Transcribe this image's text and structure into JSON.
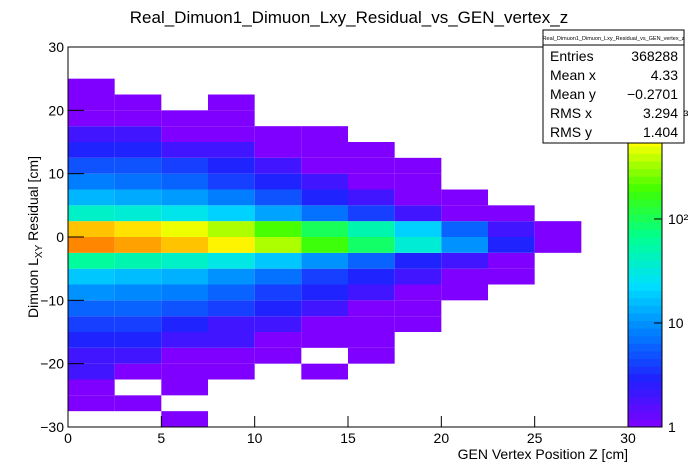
{
  "chart_data": {
    "type": "heatmap",
    "title": "Real_Dimuon1_Dimuon_Lxy_Residual_vs_GEN_vertex_z",
    "xlabel": "GEN Vertex Position Z [cm]",
    "ylabel_parts": [
      "Dimuon L",
      "XY",
      " Residual [cm]"
    ],
    "xlim": [
      0,
      30
    ],
    "xticks": [
      0,
      5,
      10,
      15,
      20,
      25,
      30
    ],
    "ylim": [
      -30,
      30
    ],
    "yticks": [
      {
        "value": -30,
        "label": "−30"
      },
      {
        "value": -20,
        "label": "−20"
      },
      {
        "value": -10,
        "label": "−10"
      },
      0,
      10,
      20,
      30
    ],
    "zlim": [
      1,
      4500
    ],
    "zlog": true,
    "zticks": [
      1,
      10,
      {
        "value": 100,
        "label": "10²"
      },
      {
        "value": 1000,
        "label": "10³"
      }
    ],
    "palette": [
      "#8000ff",
      "#2020ff",
      "#0080ff",
      "#00e0ff",
      "#00ff90",
      "#40ff00",
      "#ffff00",
      "#ff8000",
      "#ff0000"
    ],
    "xbins": [
      0,
      2.5,
      5,
      7.5,
      10,
      12.5,
      15,
      17.5,
      20,
      22.5,
      25,
      27.5,
      30
    ],
    "ybins": [
      -30,
      -27.5,
      -25,
      -22.5,
      -20,
      -17.5,
      -15,
      -12.5,
      -10,
      -7.5,
      -5,
      -2.5,
      0,
      2.5,
      5,
      7.5,
      10,
      12.5,
      15,
      17.5,
      20,
      22.5,
      25,
      27.5,
      30
    ],
    "z": [
      [
        0,
        0,
        1,
        0,
        0,
        0,
        0,
        0,
        0,
        0,
        0,
        0
      ],
      [
        1,
        1,
        0,
        0,
        0,
        0,
        0,
        0,
        0,
        0,
        0,
        0
      ],
      [
        1,
        0,
        1,
        0,
        0,
        0,
        0,
        0,
        0,
        0,
        0,
        0
      ],
      [
        2,
        1,
        1,
        1,
        0,
        1,
        0,
        0,
        0,
        0,
        0,
        0
      ],
      [
        2,
        2,
        1,
        1,
        1,
        0,
        1,
        0,
        0,
        0,
        0,
        0
      ],
      [
        3,
        3,
        2,
        2,
        1,
        1,
        1,
        0,
        0,
        0,
        0,
        0
      ],
      [
        4,
        4,
        3,
        2,
        2,
        1,
        1,
        1,
        0,
        0,
        0,
        0
      ],
      [
        6,
        6,
        5,
        4,
        3,
        2,
        1,
        1,
        0,
        0,
        0,
        0
      ],
      [
        10,
        9,
        8,
        6,
        4,
        3,
        2,
        1,
        1,
        0,
        0,
        0
      ],
      [
        18,
        16,
        14,
        10,
        7,
        4,
        3,
        2,
        1,
        1,
        0,
        0
      ],
      [
        60,
        50,
        40,
        30,
        18,
        10,
        6,
        3,
        2,
        1,
        0,
        0
      ],
      [
        1500,
        1200,
        900,
        600,
        350,
        180,
        90,
        35,
        10,
        3,
        1,
        0
      ],
      [
        900,
        700,
        500,
        350,
        200,
        100,
        50,
        20,
        6,
        2,
        1,
        0
      ],
      [
        40,
        35,
        28,
        20,
        12,
        7,
        4,
        2,
        1,
        1,
        0,
        0
      ],
      [
        15,
        13,
        11,
        8,
        5,
        3,
        2,
        1,
        1,
        0,
        0,
        0
      ],
      [
        8,
        7,
        6,
        4,
        3,
        2,
        1,
        1,
        0,
        0,
        0,
        0
      ],
      [
        5,
        5,
        4,
        3,
        2,
        1,
        1,
        1,
        0,
        0,
        0,
        0
      ],
      [
        3,
        3,
        2,
        2,
        1,
        1,
        1,
        0,
        0,
        0,
        0,
        0
      ],
      [
        2,
        2,
        1,
        1,
        1,
        1,
        0,
        0,
        0,
        0,
        0,
        0
      ],
      [
        1,
        1,
        1,
        1,
        0,
        0,
        0,
        0,
        0,
        0,
        0,
        0
      ],
      [
        1,
        1,
        0,
        1,
        0,
        0,
        0,
        0,
        0,
        0,
        0,
        0
      ],
      [
        1,
        0,
        0,
        0,
        0,
        0,
        0,
        0,
        0,
        0,
        0,
        0
      ],
      [
        0,
        0,
        0,
        0,
        0,
        0,
        0,
        0,
        0,
        0,
        0,
        0
      ],
      [
        0,
        0,
        0,
        0,
        0,
        0,
        0,
        0,
        0,
        0,
        0,
        0
      ]
    ],
    "stats": {
      "title": "Real_Dimuon1_Dimuon_Lxy_Residual_vs_GEN_vertex_z",
      "rows": [
        {
          "label": "Entries",
          "value": 368288
        },
        {
          "label": "Mean x",
          "value": 4.33
        },
        {
          "label": "Mean y",
          "value": -0.2701,
          "value_label": "−0.2701"
        },
        {
          "label": "RMS x",
          "value": 3.294
        },
        {
          "label": "RMS y",
          "value": 1.404
        }
      ]
    }
  }
}
